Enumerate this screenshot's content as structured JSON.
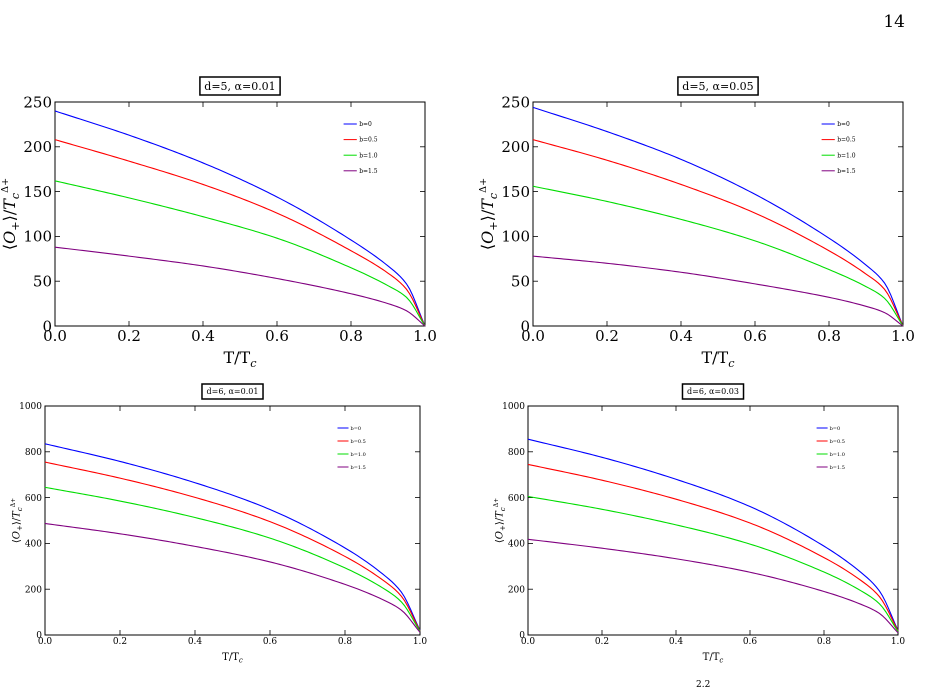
{
  "page": {
    "number": "14",
    "caption_fragment": "2.2"
  },
  "chart_data": [
    {
      "type": "line",
      "title": "d=5, α=0.01",
      "xlabel": "T/T_c",
      "ylabel": "⟨O+⟩/T_c^Δ+",
      "xlim": [
        0,
        1
      ],
      "ylim": [
        0,
        250
      ],
      "xticks": [
        "0.0",
        "0.2",
        "0.4",
        "0.6",
        "0.8",
        "1.0"
      ],
      "yticks": [
        "0",
        "50",
        "100",
        "150",
        "200",
        "250"
      ],
      "legend_position": "top-right",
      "series": [
        {
          "name": "b=0",
          "color": "#0000ff",
          "x": [
            0,
            0.2,
            0.4,
            0.6,
            0.8,
            0.9,
            0.95,
            1.0
          ],
          "values": [
            240,
            213,
            182,
            144,
            96,
            67,
            47,
            0
          ]
        },
        {
          "name": "b=0.5",
          "color": "#ff0000",
          "x": [
            0,
            0.2,
            0.4,
            0.6,
            0.8,
            0.9,
            0.95,
            1.0
          ],
          "values": [
            208,
            184,
            158,
            126,
            84,
            59,
            41,
            0
          ]
        },
        {
          "name": "b=1.0",
          "color": "#00dd00",
          "x": [
            0,
            0.2,
            0.4,
            0.6,
            0.8,
            0.9,
            0.95,
            1.0
          ],
          "values": [
            162,
            143,
            122,
            98,
            65,
            45,
            32,
            0
          ]
        },
        {
          "name": "b=1.5",
          "color": "#800080",
          "x": [
            0,
            0.2,
            0.4,
            0.6,
            0.8,
            0.9,
            0.95,
            1.0
          ],
          "values": [
            88,
            78,
            67,
            53,
            36,
            25,
            17,
            0
          ]
        }
      ]
    },
    {
      "type": "line",
      "title": "d=5, α=0.05",
      "xlabel": "T/T_c",
      "ylabel": "⟨O+⟩/T_c^Δ+",
      "xlim": [
        0,
        1
      ],
      "ylim": [
        0,
        250
      ],
      "xticks": [
        "0.0",
        "0.2",
        "0.4",
        "0.6",
        "0.8",
        "1.0"
      ],
      "yticks": [
        "0",
        "50",
        "100",
        "150",
        "200",
        "250"
      ],
      "legend_position": "top-right",
      "series": [
        {
          "name": "b=0",
          "color": "#0000ff",
          "x": [
            0,
            0.2,
            0.4,
            0.6,
            0.8,
            0.9,
            0.95,
            1.0
          ],
          "values": [
            244,
            217,
            186,
            147,
            98,
            68,
            48,
            0
          ]
        },
        {
          "name": "b=0.5",
          "color": "#ff0000",
          "x": [
            0,
            0.2,
            0.4,
            0.6,
            0.8,
            0.9,
            0.95,
            1.0
          ],
          "values": [
            208,
            185,
            158,
            126,
            84,
            58,
            41,
            0
          ]
        },
        {
          "name": "b=1.0",
          "color": "#00dd00",
          "x": [
            0,
            0.2,
            0.4,
            0.6,
            0.8,
            0.9,
            0.95,
            1.0
          ],
          "values": [
            156,
            139,
            119,
            95,
            63,
            44,
            31,
            0
          ]
        },
        {
          "name": "b=1.5",
          "color": "#800080",
          "x": [
            0,
            0.2,
            0.4,
            0.6,
            0.8,
            0.9,
            0.95,
            1.0
          ],
          "values": [
            78,
            70,
            60,
            47,
            32,
            22,
            15,
            0
          ]
        }
      ]
    },
    {
      "type": "line",
      "title": "d=6, α=0.01",
      "xlabel": "T/T_c",
      "ylabel": "⟨O+⟩/T_c^Δ+",
      "xlim": [
        0,
        1
      ],
      "ylim": [
        0,
        1000
      ],
      "xticks": [
        "0.0",
        "0.2",
        "0.4",
        "0.6",
        "0.8",
        "1.0"
      ],
      "yticks": [
        "0",
        "200",
        "400",
        "600",
        "800",
        "1000"
      ],
      "legend_position": "top-right",
      "series": [
        {
          "name": "b=0",
          "color": "#0000ff",
          "x": [
            0,
            0.2,
            0.4,
            0.6,
            0.8,
            0.9,
            0.95,
            1.0
          ],
          "values": [
            835,
            758,
            665,
            548,
            380,
            267,
            188,
            20
          ]
        },
        {
          "name": "b=0.5",
          "color": "#ff0000",
          "x": [
            0,
            0.2,
            0.4,
            0.6,
            0.8,
            0.9,
            0.95,
            1.0
          ],
          "values": [
            755,
            685,
            601,
            495,
            343,
            241,
            170,
            18
          ]
        },
        {
          "name": "b=1.0",
          "color": "#00dd00",
          "x": [
            0,
            0.2,
            0.4,
            0.6,
            0.8,
            0.9,
            0.95,
            1.0
          ],
          "values": [
            645,
            585,
            513,
            423,
            293,
            206,
            145,
            16
          ]
        },
        {
          "name": "b=1.5",
          "color": "#800080",
          "x": [
            0,
            0.2,
            0.4,
            0.6,
            0.8,
            0.9,
            0.95,
            1.0
          ],
          "values": [
            487,
            442,
            387,
            319,
            221,
            155,
            109,
            12
          ]
        }
      ]
    },
    {
      "type": "line",
      "title": "d=6, α=0.03",
      "xlabel": "T/T_c",
      "ylabel": "⟨O+⟩/T_c^Δ+",
      "xlim": [
        0,
        1
      ],
      "ylim": [
        0,
        1000
      ],
      "xticks": [
        "0.0",
        "0.2",
        "0.4",
        "0.6",
        "0.8",
        "1.0"
      ],
      "yticks": [
        "0",
        "200",
        "400",
        "600",
        "800",
        "1000"
      ],
      "legend_position": "top-right",
      "series": [
        {
          "name": "b=0",
          "color": "#0000ff",
          "x": [
            0,
            0.2,
            0.4,
            0.6,
            0.8,
            0.9,
            0.95,
            1.0
          ],
          "values": [
            855,
            776,
            680,
            561,
            388,
            273,
            192,
            20
          ]
        },
        {
          "name": "b=0.5",
          "color": "#ff0000",
          "x": [
            0,
            0.2,
            0.4,
            0.6,
            0.8,
            0.9,
            0.95,
            1.0
          ],
          "values": [
            745,
            676,
            593,
            489,
            338,
            238,
            167,
            18
          ]
        },
        {
          "name": "b=1.0",
          "color": "#00dd00",
          "x": [
            0,
            0.2,
            0.4,
            0.6,
            0.8,
            0.9,
            0.95,
            1.0
          ],
          "values": [
            605,
            549,
            481,
            397,
            275,
            193,
            136,
            15
          ]
        },
        {
          "name": "b=1.5",
          "color": "#800080",
          "x": [
            0,
            0.2,
            0.4,
            0.6,
            0.8,
            0.9,
            0.95,
            1.0
          ],
          "values": [
            418,
            379,
            333,
            274,
            190,
            134,
            94,
            10
          ]
        }
      ]
    }
  ]
}
